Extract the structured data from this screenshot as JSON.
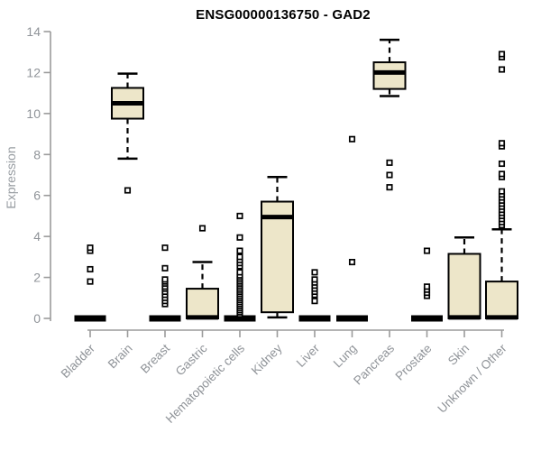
{
  "chart_data": {
    "type": "boxplot",
    "title": "ENSG00000136750 - GAD2",
    "ylabel": "Expression",
    "xlabel": "",
    "ylim": [
      0,
      14
    ],
    "yticks": [
      0,
      2,
      4,
      6,
      8,
      10,
      12,
      14
    ],
    "grid": false,
    "legend": "none",
    "colors": {
      "box_fill": "#ede6c9",
      "box_stroke": "#000000",
      "axis_line": "#9b9b9b",
      "tick_label": "#8f9398",
      "title_color": "#000000",
      "background": "#ffffff"
    },
    "categories": [
      "Bladder",
      "Brain",
      "Breast",
      "Gastric",
      "Hematopoietic cells",
      "Kidney",
      "Liver",
      "Lung",
      "Pancreas",
      "Prostate",
      "Skin",
      "Unknown / Other"
    ],
    "boxes": [
      {
        "label": "Bladder",
        "q1": 0,
        "median": 0,
        "q3": 0,
        "whisker_low": 0,
        "whisker_high": 0,
        "outliers": [
          1.8,
          2.4,
          3.3,
          3.45
        ]
      },
      {
        "label": "Brain",
        "q1": 9.75,
        "median": 10.5,
        "q3": 11.25,
        "whisker_low": 7.8,
        "whisker_high": 11.95,
        "outliers": [
          6.25
        ]
      },
      {
        "label": "Breast",
        "q1": 0,
        "median": 0,
        "q3": 0,
        "whisker_low": 0,
        "whisker_high": 0,
        "outliers": [
          0.7,
          0.85,
          1.0,
          1.15,
          1.3,
          1.45,
          1.55,
          1.7,
          1.8,
          1.9,
          2.45,
          3.45
        ]
      },
      {
        "label": "Gastric",
        "q1": 0,
        "median": 0.05,
        "q3": 1.45,
        "whisker_low": 0,
        "whisker_high": 2.75,
        "outliers": [
          4.4
        ]
      },
      {
        "label": "Hematopoietic cells",
        "q1": 0,
        "median": 0,
        "q3": 0,
        "whisker_low": 0,
        "whisker_high": 0,
        "outliers": [
          0.2,
          0.3,
          0.4,
          0.5,
          0.6,
          0.7,
          0.8,
          0.9,
          1.0,
          1.1,
          1.2,
          1.3,
          1.4,
          1.5,
          1.6,
          1.7,
          1.8,
          1.9,
          2.0,
          2.1,
          2.25,
          2.55,
          2.7,
          2.85,
          3.0,
          3.3,
          3.95,
          5.0
        ]
      },
      {
        "label": "Kidney",
        "q1": 0.3,
        "median": 4.95,
        "q3": 5.7,
        "whisker_low": 0.05,
        "whisker_high": 6.9,
        "outliers": []
      },
      {
        "label": "Liver",
        "q1": 0,
        "median": 0,
        "q3": 0,
        "whisker_low": 0,
        "whisker_high": 0,
        "outliers": [
          0.85,
          1.15,
          1.3,
          1.45,
          1.6,
          1.75,
          1.9,
          2.25
        ]
      },
      {
        "label": "Lung",
        "q1": 0,
        "median": 0,
        "q3": 0,
        "whisker_low": 0,
        "whisker_high": 0,
        "outliers": [
          2.75,
          8.75
        ]
      },
      {
        "label": "Pancreas",
        "q1": 11.2,
        "median": 12.0,
        "q3": 12.5,
        "whisker_low": 10.85,
        "whisker_high": 13.6,
        "outliers": [
          6.4,
          7.0,
          7.6
        ]
      },
      {
        "label": "Prostate",
        "q1": 0,
        "median": 0,
        "q3": 0,
        "whisker_low": 0,
        "whisker_high": 0,
        "outliers": [
          1.1,
          1.25,
          1.4,
          1.55,
          3.3
        ]
      },
      {
        "label": "Skin",
        "q1": 0,
        "median": 0.05,
        "q3": 3.15,
        "whisker_low": 0,
        "whisker_high": 3.95,
        "outliers": []
      },
      {
        "label": "Unknown / Other",
        "q1": 0,
        "median": 0.05,
        "q3": 1.8,
        "whisker_low": 0,
        "whisker_high": 4.35,
        "outliers": [
          4.55,
          4.7,
          4.85,
          5.0,
          5.15,
          5.3,
          5.45,
          5.6,
          5.75,
          5.9,
          6.05,
          6.2,
          6.9,
          7.05,
          7.55,
          8.4,
          8.55,
          12.15,
          12.75,
          12.9
        ]
      }
    ]
  }
}
